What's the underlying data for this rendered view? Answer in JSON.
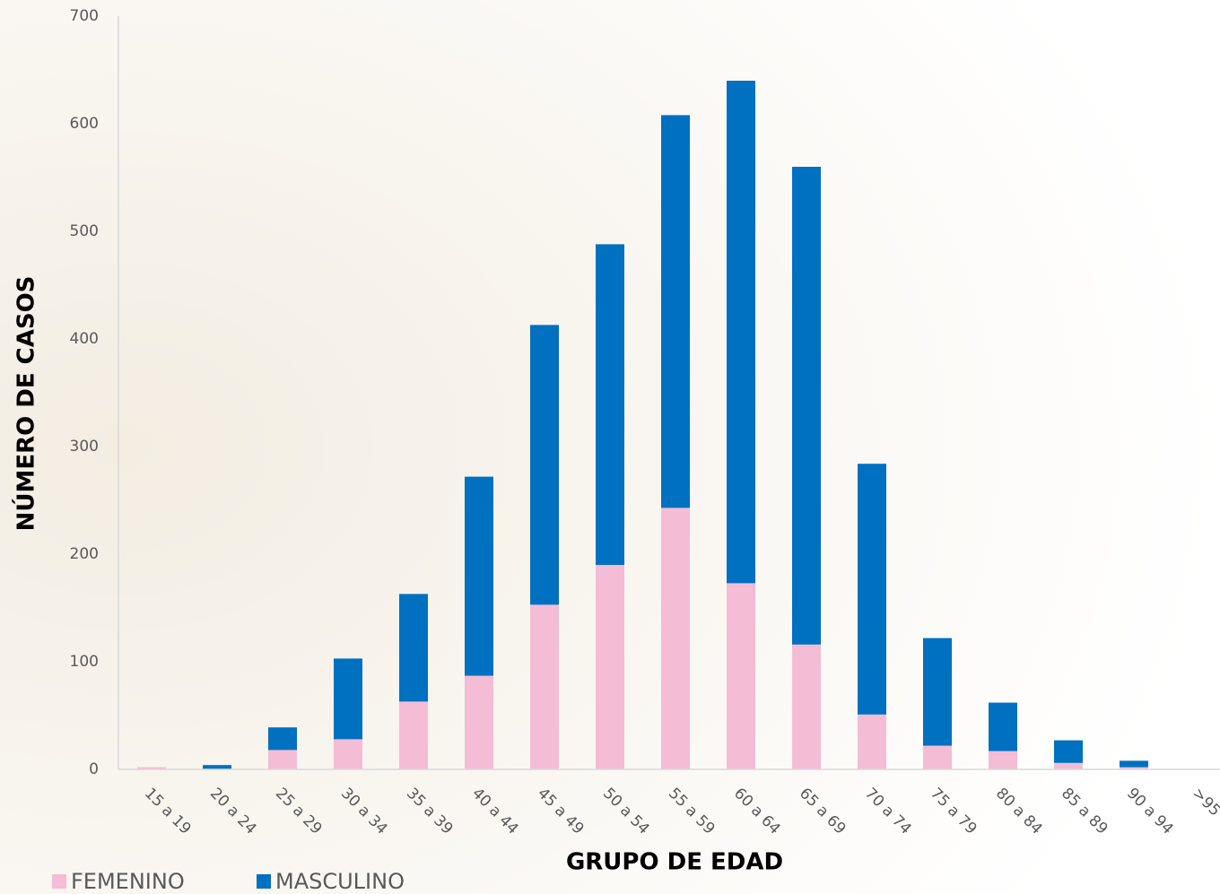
{
  "chart_data": {
    "type": "stacked_bar",
    "y_label": "NÚMERO DE CASOS",
    "x_label": "GRUPO DE EDAD",
    "categories": [
      "15 a 19",
      "20 a 24",
      "25 a 29",
      "30 a 34",
      "35 a 39",
      "40 a 44",
      "45 a 49",
      "50 a 54",
      "55 a 59",
      "60 a 64",
      "65 a 69",
      "70 a 74",
      "75 a 79",
      "80 a 84",
      "85 a 89",
      "90 a 94",
      ">95"
    ],
    "series": [
      {
        "name": "FEMENINO",
        "color": "#f4bcd5",
        "values": [
          2,
          0,
          18,
          28,
          63,
          87,
          153,
          190,
          243,
          173,
          116,
          51,
          22,
          17,
          6,
          2,
          0
        ]
      },
      {
        "name": "MASCULINO",
        "color": "#0070c0",
        "values": [
          0,
          4,
          21,
          75,
          100,
          185,
          260,
          298,
          365,
          467,
          444,
          233,
          100,
          45,
          21,
          6,
          0
        ]
      }
    ],
    "ylim": [
      0,
      700
    ],
    "yticks": [
      0,
      100,
      200,
      300,
      400,
      500,
      600,
      700
    ],
    "grid": false,
    "legend": "bottom-left"
  }
}
